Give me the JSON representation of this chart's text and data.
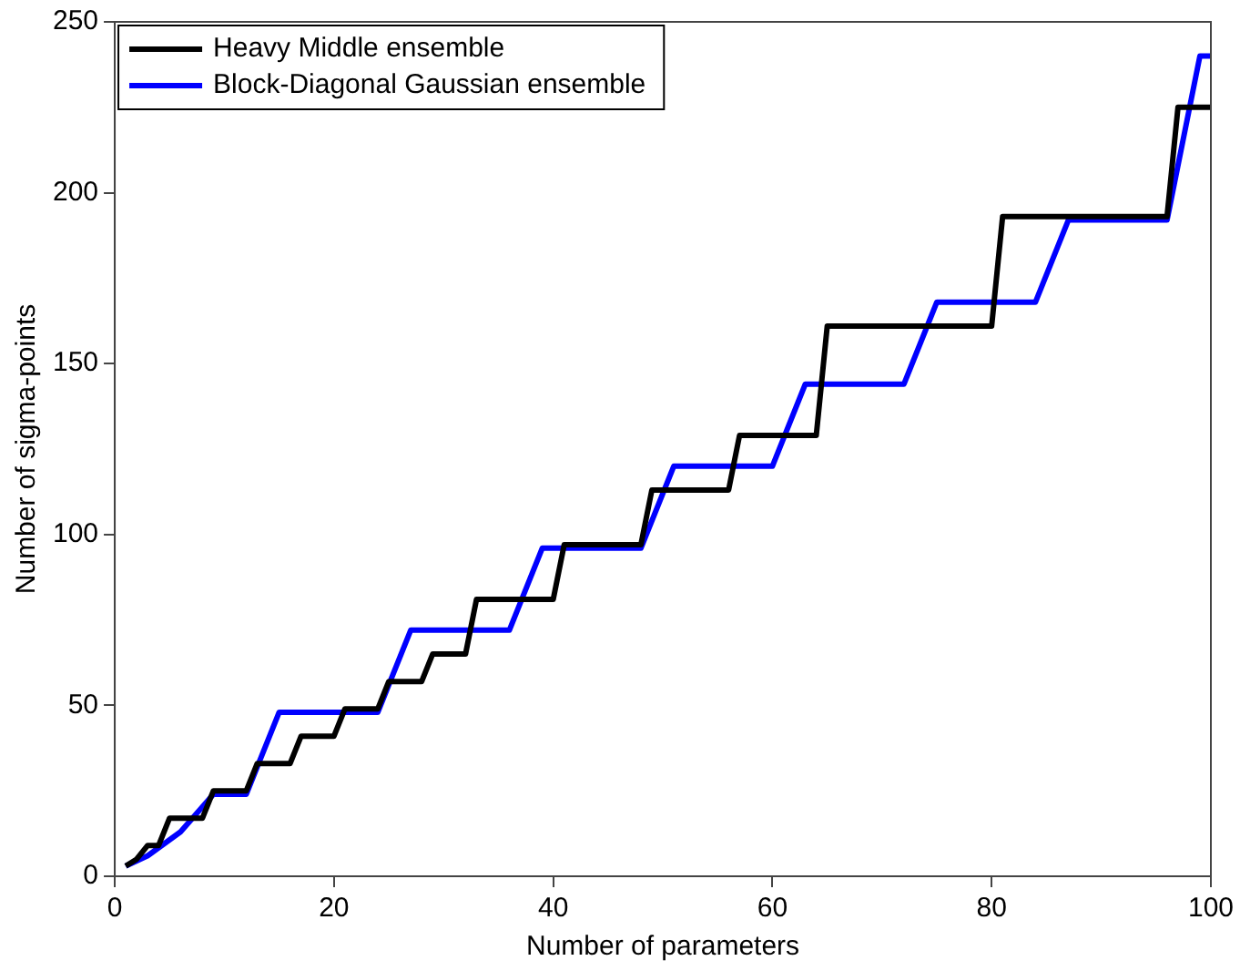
{
  "chart_data": {
    "type": "line",
    "xlabel": "Number of parameters",
    "ylabel": "Number of sigma-points",
    "xlim": [
      0,
      100
    ],
    "xticks": [
      0,
      20,
      40,
      60,
      80,
      100
    ],
    "ylim": [
      0,
      250
    ],
    "yticks": [
      0,
      50,
      100,
      150,
      200,
      250
    ],
    "grid": false,
    "legend": "top left",
    "marker": "none",
    "line_style": "solid",
    "series": [
      {
        "name": "Heavy Middle ensemble",
        "color": "#000000",
        "x": [
          1,
          2,
          3,
          4,
          5,
          8,
          9,
          12,
          13,
          16,
          17,
          20,
          21,
          24,
          25,
          28,
          29,
          32,
          33,
          40,
          41,
          48,
          49,
          56,
          57,
          64,
          65,
          80,
          81,
          96,
          97,
          100
        ],
        "values": [
          3,
          5,
          9,
          9,
          17,
          17,
          25,
          25,
          33,
          33,
          41,
          41,
          49,
          49,
          57,
          57,
          65,
          65,
          81,
          81,
          97,
          97,
          113,
          113,
          129,
          129,
          161,
          161,
          193,
          193,
          225,
          225
        ]
      },
      {
        "name": "Block-Diagonal Gaussian ensemble",
        "color": "#0000ff",
        "x": [
          1,
          3,
          6,
          9,
          12,
          15,
          24,
          27,
          36,
          39,
          48,
          51,
          60,
          63,
          72,
          75,
          84,
          87,
          96,
          99,
          100
        ],
        "values": [
          3,
          6,
          13,
          24,
          24,
          48,
          48,
          72,
          72,
          96,
          96,
          120,
          120,
          144,
          144,
          168,
          168,
          192,
          192,
          240,
          240
        ]
      }
    ]
  }
}
